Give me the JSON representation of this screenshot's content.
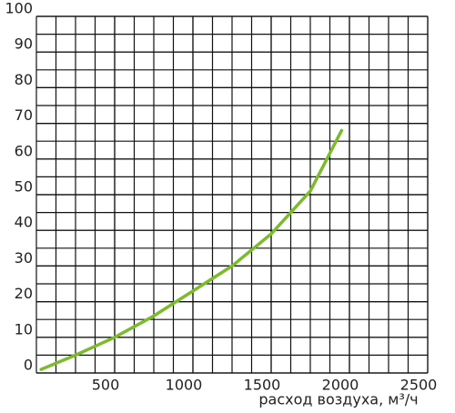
{
  "chart_data": {
    "type": "line",
    "x_label": "расход воздуха, м³/ч",
    "x": [
      30,
      250,
      500,
      750,
      1000,
      1250,
      1500,
      1750,
      1950
    ],
    "series": [
      {
        "name": null,
        "color": "#7bbb2c",
        "values": [
          1,
          5,
          10,
          16,
          23,
          30,
          39,
          51,
          68
        ]
      }
    ],
    "xlim": [
      0,
      2500
    ],
    "xticks": [
      500,
      1000,
      1500,
      2000,
      2500
    ],
    "ylim": [
      0,
      100
    ],
    "yticks": [
      0,
      10,
      20,
      30,
      40,
      50,
      60,
      70,
      80,
      90,
      100
    ],
    "grid": true
  }
}
